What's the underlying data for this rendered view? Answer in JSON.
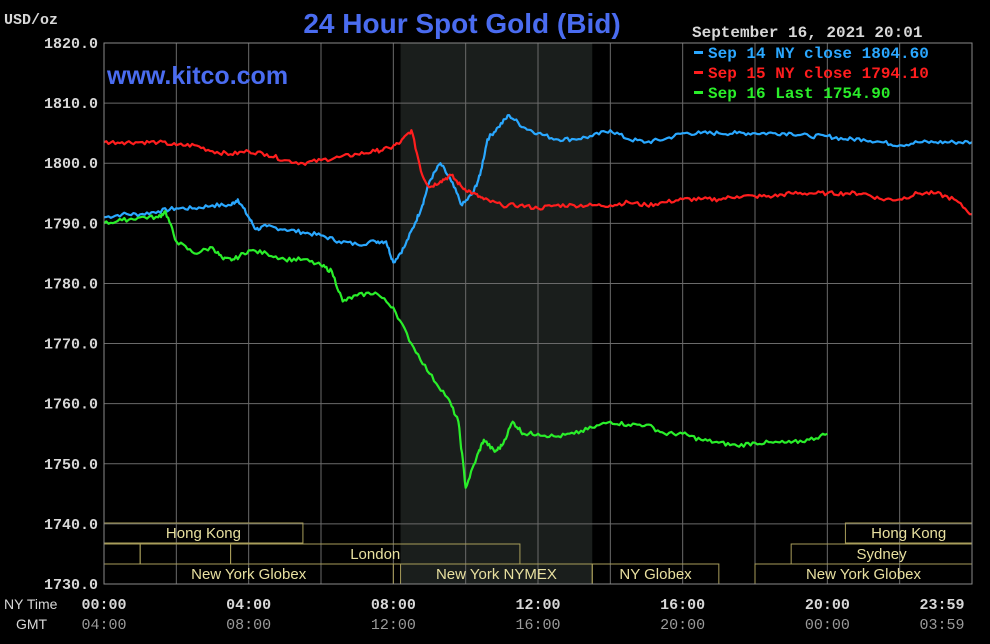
{
  "title": "24 Hour Spot Gold (Bid)",
  "brand": "www.kitco.com",
  "timestamp": "September 16, 2021 20:01",
  "y_unit": "USD/oz",
  "x_row_labels": {
    "ny": "NY Time",
    "gmt": "GMT"
  },
  "colors": {
    "background": "#000000",
    "grid": "#6a6a6a",
    "title": "#4a6cf0",
    "text": "#d8d8d8",
    "session_shade": "#1a1e1c",
    "session_box": "#a89d5a",
    "sep14": "#2aa8ff",
    "sep15": "#ff1e1e",
    "sep16": "#2aee2a"
  },
  "sessions": [
    {
      "label": "Hong Kong",
      "row": 0,
      "start": 0.0,
      "end": 5.5
    },
    {
      "label": "",
      "row": 1,
      "start": 0.0,
      "end": 1.0
    },
    {
      "label": "",
      "row": 1,
      "start": 1.0,
      "end": 3.5
    },
    {
      "label": "London",
      "row": 1,
      "start": 3.5,
      "end": 11.5
    },
    {
      "label": "New York Globex",
      "row": 2,
      "start": 0.0,
      "end": 8.0
    },
    {
      "label": "New York NYMEX",
      "row": 2,
      "start": 8.2,
      "end": 13.5
    },
    {
      "label": "NY Globex",
      "row": 2,
      "start": 13.5,
      "end": 17.0
    },
    {
      "label": "Hong Kong",
      "row": 0,
      "start": 20.5,
      "end": 24.0
    },
    {
      "label": "Sydney",
      "row": 1,
      "start": 19.0,
      "end": 24.0
    },
    {
      "label": "New York Globex",
      "row": 2,
      "start": 18.0,
      "end": 24.0
    }
  ],
  "chart_data": {
    "type": "line",
    "title": "24 Hour Spot Gold (Bid)",
    "ylabel": "USD/oz",
    "ylim": [
      1730,
      1820
    ],
    "yticks": [
      "1820.0",
      "1810.0",
      "1800.0",
      "1790.0",
      "1780.0",
      "1770.0",
      "1760.0",
      "1750.0",
      "1740.0",
      "1730.0"
    ],
    "ytick_values": [
      1820,
      1810,
      1800,
      1790,
      1780,
      1770,
      1760,
      1750,
      1740,
      1730
    ],
    "xlim": [
      0,
      24
    ],
    "xticks_ny": [
      "00:00",
      "04:00",
      "08:00",
      "12:00",
      "16:00",
      "20:00",
      "23:59"
    ],
    "xticks_gmt": [
      "04:00",
      "08:00",
      "12:00",
      "16:00",
      "20:00",
      "00:00",
      "03:59"
    ],
    "xtick_hours": [
      0,
      4,
      8,
      12,
      16,
      20,
      24
    ],
    "shaded_session_hours": [
      8.2,
      13.5
    ],
    "grid": true,
    "legend_position": "top-right",
    "series": [
      {
        "name": "Sep 14 NY close 1804.60",
        "color": "#2aa8ff",
        "x": [
          0,
          0.5,
          1.0,
          1.5,
          2.0,
          2.5,
          3.0,
          3.5,
          3.7,
          4.0,
          4.2,
          4.5,
          5.0,
          5.5,
          6.0,
          6.5,
          7.0,
          7.5,
          7.8,
          8.0,
          8.3,
          8.6,
          8.8,
          9.0,
          9.3,
          9.6,
          9.9,
          10.2,
          10.4,
          10.6,
          10.9,
          11.2,
          11.6,
          12.0,
          12.5,
          13.0,
          13.5,
          14.0,
          14.5,
          15.0,
          15.5,
          16.0,
          16.5,
          17.0,
          17.5,
          18.0,
          18.5,
          19.0,
          19.5,
          20.0,
          20.5,
          21.0,
          21.5,
          22.0,
          22.5,
          23.0,
          23.5,
          24.0
        ],
        "y": [
          1791,
          1791.5,
          1791.5,
          1792,
          1792.5,
          1792.5,
          1793,
          1793,
          1794,
          1791,
          1789,
          1789.5,
          1789,
          1788.5,
          1788,
          1787,
          1786.5,
          1787,
          1787,
          1783.5,
          1786,
          1790,
          1793,
          1797,
          1800,
          1797,
          1793,
          1795,
          1798,
          1804,
          1806,
          1808,
          1806,
          1805,
          1804,
          1804,
          1804.5,
          1805.5,
          1804,
          1803.5,
          1804,
          1805,
          1805,
          1805,
          1805,
          1805,
          1805,
          1805,
          1804.5,
          1804.5,
          1804,
          1804,
          1803.5,
          1803,
          1803.5,
          1803.5,
          1803.5,
          1803.5
        ]
      },
      {
        "name": "Sep 15 NY close 1794.10",
        "color": "#ff1e1e",
        "x": [
          0,
          0.5,
          1.0,
          1.5,
          2.0,
          2.5,
          3.0,
          3.5,
          4.0,
          4.5,
          5.0,
          5.5,
          6.0,
          6.5,
          7.0,
          7.5,
          7.9,
          8.2,
          8.5,
          8.8,
          9.0,
          9.3,
          9.6,
          9.9,
          10.2,
          10.5,
          11.0,
          11.5,
          12.0,
          12.5,
          13.0,
          13.5,
          14.0,
          14.5,
          15.0,
          15.5,
          16.0,
          16.5,
          17.0,
          17.5,
          18.0,
          18.5,
          19.0,
          19.5,
          20.0,
          20.5,
          21.0,
          21.5,
          22.0,
          22.5,
          23.0,
          23.5,
          24.0
        ],
        "y": [
          1803.5,
          1803.5,
          1803.5,
          1803.5,
          1803,
          1803,
          1802,
          1801.5,
          1802,
          1801.5,
          1800.5,
          1800,
          1800.5,
          1801,
          1801.5,
          1802,
          1802.5,
          1803.5,
          1805.5,
          1798,
          1796,
          1797,
          1798,
          1796,
          1795,
          1794,
          1793,
          1793,
          1792.5,
          1793,
          1793,
          1793,
          1793,
          1793.5,
          1793,
          1793.5,
          1794,
          1794,
          1794,
          1794.5,
          1794.5,
          1794.5,
          1795,
          1795,
          1795,
          1795,
          1795,
          1794,
          1794,
          1795,
          1795,
          1794,
          1791.5
        ]
      },
      {
        "name": "Sep 16 Last 1754.90",
        "color": "#2aee2a",
        "x": [
          0,
          0.5,
          1.0,
          1.5,
          1.7,
          2.0,
          2.5,
          3.0,
          3.3,
          3.6,
          4.0,
          4.5,
          5.0,
          5.5,
          6.0,
          6.3,
          6.6,
          7.0,
          7.5,
          8.0,
          8.5,
          9.0,
          9.5,
          9.8,
          10.0,
          10.3,
          10.5,
          10.8,
          11.0,
          11.3,
          11.6,
          12.0,
          12.5,
          13.0,
          13.5,
          14.0,
          14.5,
          15.0,
          15.5,
          16.0,
          16.5,
          17.0,
          17.5,
          18.0,
          18.5,
          19.0,
          19.5,
          20.0
        ],
        "y": [
          1790,
          1790.5,
          1791,
          1791,
          1792,
          1787,
          1785,
          1786,
          1784,
          1784,
          1785.5,
          1785,
          1784,
          1784,
          1783,
          1782,
          1777,
          1778,
          1778.5,
          1776,
          1770,
          1765,
          1761,
          1757,
          1746,
          1751,
          1754,
          1752,
          1753,
          1757,
          1755,
          1755,
          1754.5,
          1755,
          1756,
          1757,
          1756.5,
          1756.5,
          1755,
          1755,
          1754,
          1753.5,
          1753,
          1753.5,
          1753.5,
          1753.5,
          1754,
          1755
        ]
      }
    ]
  }
}
